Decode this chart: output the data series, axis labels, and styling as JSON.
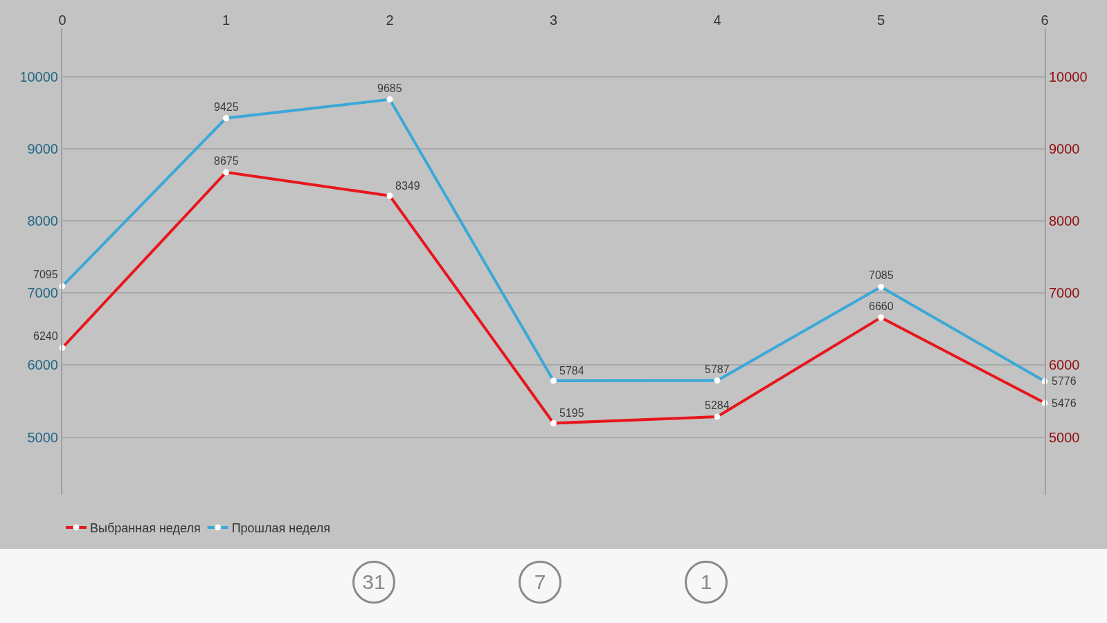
{
  "chart_data": {
    "type": "line",
    "x": [
      0,
      1,
      2,
      3,
      4,
      5,
      6
    ],
    "xlim": [
      0,
      6
    ],
    "xticks": [
      0,
      1,
      2,
      3,
      4,
      5,
      6
    ],
    "ylim": [
      4200,
      10670
    ],
    "yticks": [
      5000,
      6000,
      7000,
      8000,
      9000,
      10000
    ],
    "y2lim": [
      4200,
      10670
    ],
    "y2ticks": [
      5000,
      6000,
      7000,
      8000,
      9000,
      10000
    ],
    "series": [
      {
        "name": "Выбранная неделя",
        "color": "#e8161c",
        "axis": "y2",
        "values": [
          6240,
          8675,
          8349,
          5195,
          5284,
          6660,
          5476
        ]
      },
      {
        "name": "Прошлая неделя",
        "color": "#3aa8d8",
        "values": [
          7095,
          9425,
          9685,
          5784,
          5787,
          7085,
          5776
        ]
      }
    ],
    "data_labels": true,
    "marker": "circle",
    "line_style": "solid",
    "grid": "y",
    "legend": "bottom left",
    "annotations": [
      "31",
      "7",
      "1"
    ]
  }
}
